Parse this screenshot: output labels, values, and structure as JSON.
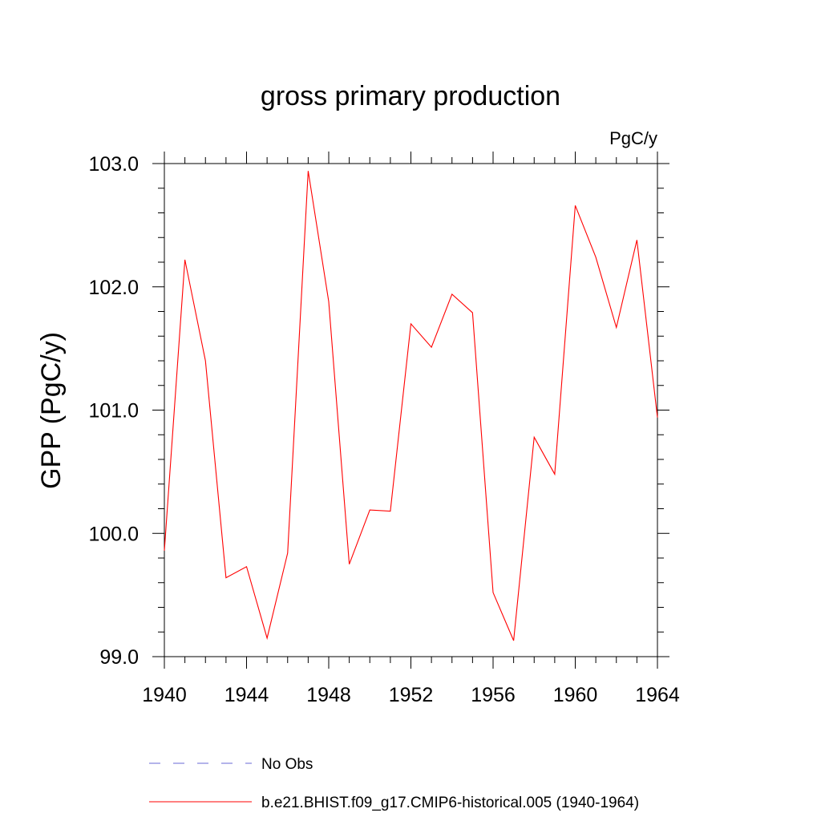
{
  "chart_data": {
    "type": "line",
    "title": "gross primary production",
    "units_label": "PgC/y",
    "ylabel": "GPP  (PgC/y)",
    "xlabel": "",
    "xlim": [
      1940,
      1964
    ],
    "ylim": [
      99.0,
      103.0
    ],
    "x_ticks": [
      1940,
      1944,
      1948,
      1952,
      1956,
      1960,
      1964
    ],
    "x_tick_labels": [
      "1940",
      "1944",
      "1948",
      "1952",
      "1956",
      "1960",
      "1964"
    ],
    "y_ticks": [
      99.0,
      100.0,
      101.0,
      102.0,
      103.0
    ],
    "y_tick_labels": [
      "99.0",
      "100.0",
      "101.0",
      "102.0",
      "103.0"
    ],
    "grid": false,
    "legend_position": "bottom",
    "series": [
      {
        "name": "b.e21.BHIST.f09_g17.CMIP6-historical.005 (1940-1964)",
        "color": "#ff0000",
        "dash": "solid",
        "x": [
          1940,
          1941,
          1942,
          1943,
          1944,
          1945,
          1946,
          1947,
          1948,
          1949,
          1950,
          1951,
          1952,
          1953,
          1954,
          1955,
          1956,
          1957,
          1958,
          1959,
          1960,
          1961,
          1962,
          1963,
          1964
        ],
        "values": [
          99.86,
          102.22,
          101.4,
          99.64,
          99.73,
          99.15,
          99.84,
          102.94,
          101.88,
          99.75,
          100.19,
          100.18,
          101.7,
          101.51,
          101.94,
          101.79,
          99.52,
          99.13,
          100.78,
          100.48,
          102.66,
          102.24,
          101.67,
          102.38,
          100.94
        ]
      }
    ],
    "legend": [
      {
        "label": "No Obs",
        "color": "#6a6ad6",
        "dash": "dashed"
      },
      {
        "label": "b.e21.BHIST.f09_g17.CMIP6-historical.005 (1940-1964)",
        "color": "#ff0000",
        "dash": "solid"
      }
    ]
  }
}
